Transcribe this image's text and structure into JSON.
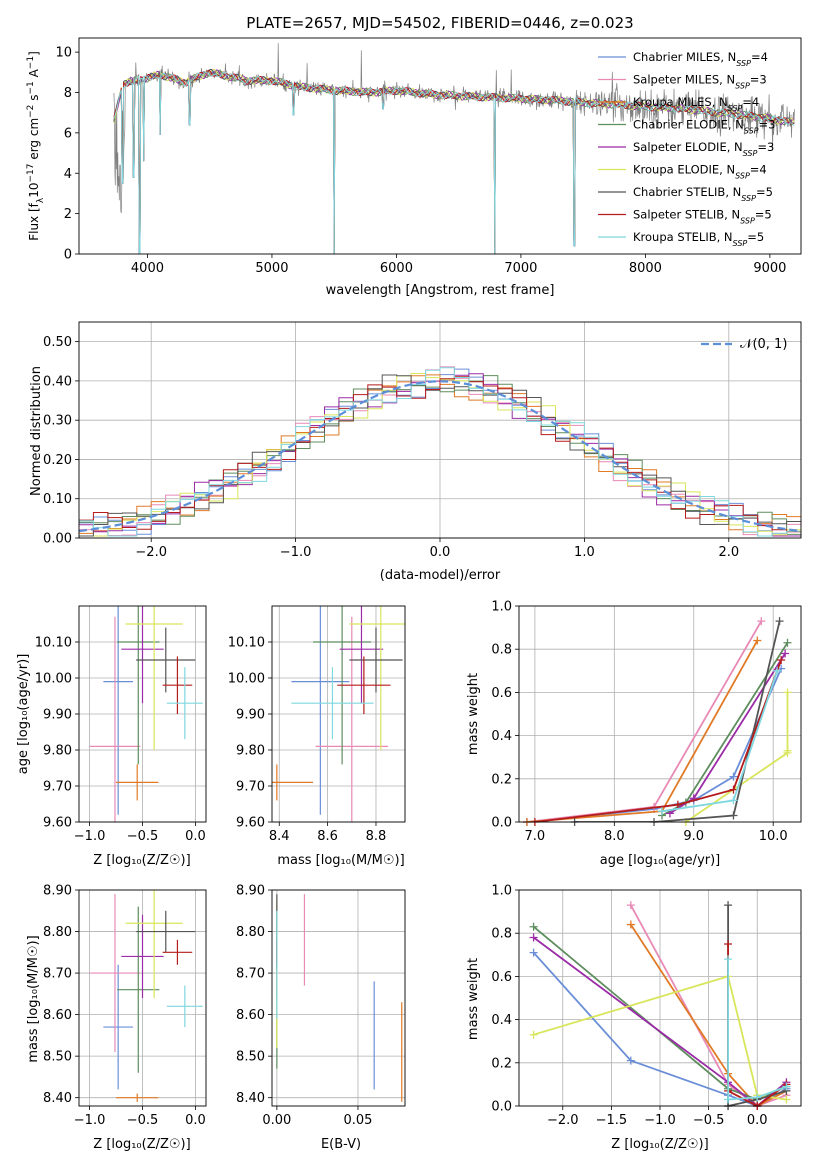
{
  "colors": {
    "Chabrier MILES": "#6a8fd8",
    "Salpeter MILES": "#e889b6",
    "Kroupa MILES": "#e07a26",
    "Chabrier ELODIE": "#5e8d5e",
    "Salpeter ELODIE": "#9b2ba6",
    "Kroupa ELODIE": "#d9e55a",
    "Chabrier STELIB": "#555555",
    "Salpeter STELIB": "#b51c1c",
    "Kroupa STELIB": "#7fd8df",
    "observed": "#808080",
    "gaussian": "#5b8fd8",
    "grid": "#b0b0b0"
  },
  "chart_data": [
    {
      "id": "spectrum",
      "type": "line",
      "title": "PLATE=2657, MJD=54502, FIBERID=0446, z=0.023",
      "xlabel": "wavelength [Angstrom, rest frame]",
      "ylabel_parts": [
        "Flux [f",
        "λ",
        "10",
        "−17",
        " erg cm",
        "−2",
        " s",
        "−1",
        " A",
        "−1",
        "]"
      ],
      "xlim": [
        3450,
        9250
      ],
      "ylim": [
        0,
        10.7
      ],
      "xticks": [
        4000,
        5000,
        6000,
        7000,
        8000,
        9000
      ],
      "yticks": [
        0,
        2,
        4,
        6,
        8,
        10
      ],
      "grid": false,
      "legend_position": "right",
      "continuum": [
        [
          3730,
          6.6
        ],
        [
          3800,
          8.4
        ],
        [
          3900,
          8.6
        ],
        [
          4000,
          8.7
        ],
        [
          4100,
          8.9
        ],
        [
          4300,
          8.5
        ],
        [
          4500,
          9.0
        ],
        [
          4800,
          8.6
        ],
        [
          5000,
          8.6
        ],
        [
          5200,
          8.3
        ],
        [
          5500,
          8.1
        ],
        [
          5800,
          8.0
        ],
        [
          6000,
          8.1
        ],
        [
          6300,
          7.9
        ],
        [
          6600,
          7.8
        ],
        [
          7000,
          7.7
        ],
        [
          7300,
          7.6
        ],
        [
          7500,
          7.5
        ],
        [
          7800,
          7.4
        ],
        [
          8000,
          7.3
        ],
        [
          8300,
          7.2
        ],
        [
          8600,
          7.0
        ],
        [
          8900,
          6.8
        ],
        [
          9200,
          6.5
        ]
      ],
      "absorptions": [
        [
          3800,
          3.5
        ],
        [
          3890,
          3.8
        ],
        [
          3935,
          0.0
        ],
        [
          3970,
          4.6
        ],
        [
          4102,
          5.9
        ],
        [
          4340,
          6.4
        ],
        [
          5175,
          6.9
        ],
        [
          5500,
          0.0
        ],
        [
          5895,
          7.2
        ],
        [
          6790,
          0.0
        ],
        [
          7430,
          0.4
        ]
      ],
      "series": [
        {
          "name": "Chabrier MILES",
          "name_sub": "SSP",
          "n_ssp": "4"
        },
        {
          "name": "Salpeter MILES",
          "name_sub": "SSP",
          "n_ssp": "3"
        },
        {
          "name": "Kroupa MILES",
          "name_sub": "SSP",
          "n_ssp": "4"
        },
        {
          "name": "Chabrier ELODIE",
          "name_sub": "SSP",
          "n_ssp": "3"
        },
        {
          "name": "Salpeter ELODIE",
          "name_sub": "SSP",
          "n_ssp": "3"
        },
        {
          "name": "Kroupa ELODIE",
          "name_sub": "SSP",
          "n_ssp": "4"
        },
        {
          "name": "Chabrier STELIB",
          "name_sub": "SSP",
          "n_ssp": "5"
        },
        {
          "name": "Salpeter STELIB",
          "name_sub": "SSP",
          "n_ssp": "5"
        },
        {
          "name": "Kroupa STELIB",
          "name_sub": "SSP",
          "n_ssp": "5"
        }
      ]
    },
    {
      "id": "residuals",
      "type": "step",
      "xlabel": "(data-model)/error",
      "ylabel": "Normed distribution",
      "xlim": [
        -2.5,
        2.5
      ],
      "ylim": [
        0,
        0.55
      ],
      "xticks": [
        -2,
        -1,
        0,
        1,
        2
      ],
      "yticks": [
        0.0,
        0.1,
        0.2,
        0.3,
        0.4,
        0.5
      ],
      "grid": true,
      "legend": "𝒩(0, 1)",
      "legend_position": "top-right",
      "bin_width": 0.1
    },
    {
      "id": "age_vs_Z",
      "type": "errorbar",
      "xlabel": "Z [log₁₀(Z/Z☉)]",
      "ylabel": "age  [log₁₀(age/yr)]",
      "xlim": [
        -1.1,
        0.1
      ],
      "ylim": [
        9.6,
        10.2
      ],
      "xticks": [
        -1.0,
        -0.5,
        0.0
      ],
      "yticks": [
        9.6,
        9.7,
        9.8,
        9.9,
        10.0,
        10.1
      ],
      "grid": true,
      "points": [
        {
          "series": "Chabrier MILES",
          "x": -0.73,
          "xerr": 0.14,
          "y": 9.99,
          "yerr": 0.37
        },
        {
          "series": "Salpeter MILES",
          "x": -0.76,
          "xerr": 0.24,
          "y": 9.81,
          "yerr": 0.36
        },
        {
          "series": "Kroupa MILES",
          "x": -0.55,
          "xerr": 0.2,
          "y": 9.71,
          "yerr": 0.05
        },
        {
          "series": "Chabrier ELODIE",
          "x": -0.54,
          "xerr": 0.2,
          "y": 10.1,
          "yerr": 0.34
        },
        {
          "series": "Salpeter ELODIE",
          "x": -0.5,
          "xerr": 0.2,
          "y": 10.08,
          "yerr": 0.15
        },
        {
          "series": "Kroupa ELODIE",
          "x": -0.39,
          "xerr": 0.27,
          "y": 10.15,
          "yerr": 0.35
        },
        {
          "series": "Chabrier STELIB",
          "x": -0.28,
          "xerr": 0.28,
          "y": 10.05,
          "yerr": 0.09
        },
        {
          "series": "Salpeter STELIB",
          "x": -0.17,
          "xerr": 0.14,
          "y": 9.98,
          "yerr": 0.08
        },
        {
          "series": "Kroupa STELIB",
          "x": -0.1,
          "xerr": 0.17,
          "y": 9.93,
          "yerr": 0.1
        }
      ]
    },
    {
      "id": "age_vs_mass",
      "type": "errorbar",
      "xlabel": "mass [log₁₀(M/M☉)]",
      "xlim": [
        8.37,
        8.92
      ],
      "ylim": [
        9.6,
        10.2
      ],
      "xticks": [
        8.4,
        8.6,
        8.8
      ],
      "yticks": [
        9.6,
        9.7,
        9.8,
        9.9,
        10.0,
        10.1
      ],
      "grid": true,
      "points": [
        {
          "series": "Chabrier MILES",
          "x": 8.57,
          "xerr": 0.12,
          "y": 9.99,
          "yerr": 0.37
        },
        {
          "series": "Salpeter MILES",
          "x": 8.7,
          "xerr": 0.15,
          "y": 9.81,
          "yerr": 0.36
        },
        {
          "series": "Kroupa MILES",
          "x": 8.39,
          "xerr": 0.15,
          "y": 9.71,
          "yerr": 0.05
        },
        {
          "series": "Chabrier ELODIE",
          "x": 8.66,
          "xerr": 0.12,
          "y": 10.1,
          "yerr": 0.34
        },
        {
          "series": "Salpeter ELODIE",
          "x": 8.74,
          "xerr": 0.09,
          "y": 10.08,
          "yerr": 0.15
        },
        {
          "series": "Kroupa ELODIE",
          "x": 8.82,
          "xerr": 0.13,
          "y": 10.15,
          "yerr": 0.35
        },
        {
          "series": "Chabrier STELIB",
          "x": 8.8,
          "xerr": 0.11,
          "y": 10.05,
          "yerr": 0.09
        },
        {
          "series": "Salpeter STELIB",
          "x": 8.75,
          "xerr": 0.11,
          "y": 9.98,
          "yerr": 0.08
        },
        {
          "series": "Kroupa STELIB",
          "x": 8.62,
          "xerr": 0.17,
          "y": 9.93,
          "yerr": 0.1
        }
      ]
    },
    {
      "id": "mass_weight_vs_age",
      "type": "line",
      "xlabel": "age  [log₁₀(age/yr)]",
      "ylabel": "mass weight",
      "xlim": [
        6.8,
        10.35
      ],
      "ylim": [
        0,
        1.0
      ],
      "xticks": [
        7,
        8,
        9,
        10
      ],
      "yticks": [
        0.0,
        0.2,
        0.4,
        0.6,
        0.8,
        1.0
      ],
      "grid": true,
      "series": [
        {
          "name": "Chabrier MILES",
          "x": [
            6.9,
            8.5,
            9.0,
            9.5,
            10.1
          ],
          "y": [
            0.0,
            0.06,
            0.1,
            0.21,
            0.71
          ]
        },
        {
          "name": "Salpeter MILES",
          "x": [
            6.9,
            8.5,
            9.85
          ],
          "y": [
            0.0,
            0.07,
            0.93
          ]
        },
        {
          "name": "Kroupa MILES",
          "x": [
            6.9,
            8.6,
            9.8
          ],
          "y": [
            0.0,
            0.05,
            0.84
          ]
        },
        {
          "name": "Chabrier ELODIE",
          "x": [
            8.6,
            8.9,
            10.18
          ],
          "y": [
            0.03,
            0.09,
            0.83
          ]
        },
        {
          "name": "Salpeter ELODIE",
          "x": [
            8.7,
            9.0,
            10.15
          ],
          "y": [
            0.04,
            0.11,
            0.78
          ]
        },
        {
          "name": "Kroupa ELODIE",
          "x": [
            8.9,
            10.18,
            10.18,
            10.18
          ],
          "y": [
            0.0,
            0.32,
            0.6,
            0.33
          ]
        },
        {
          "name": "Chabrier STELIB",
          "x": [
            7.5,
            8.5,
            9.5,
            10.08
          ],
          "y": [
            0.0,
            0.0,
            0.03,
            0.93
          ]
        },
        {
          "name": "Salpeter STELIB",
          "x": [
            7.0,
            8.8,
            9.5,
            10.1
          ],
          "y": [
            0.0,
            0.08,
            0.15,
            0.75
          ]
        },
        {
          "name": "Kroupa STELIB",
          "x": [
            8.6,
            9.5,
            10.05
          ],
          "y": [
            0.05,
            0.1,
            0.7
          ]
        }
      ]
    },
    {
      "id": "mass_vs_Z",
      "type": "errorbar",
      "xlabel": "Z [log₁₀(Z/Z☉)]",
      "ylabel": "mass [log₁₀(M/M☉)]",
      "xlim": [
        -1.1,
        0.1
      ],
      "ylim": [
        8.38,
        8.9
      ],
      "xticks": [
        -1.0,
        -0.5,
        0.0
      ],
      "yticks": [
        8.4,
        8.5,
        8.6,
        8.7,
        8.8,
        8.9
      ],
      "grid": true,
      "points": [
        {
          "series": "Chabrier MILES",
          "x": -0.73,
          "xerr": 0.14,
          "y": 8.57,
          "yerr": 0.15
        },
        {
          "series": "Salpeter MILES",
          "x": -0.76,
          "xerr": 0.24,
          "y": 8.7,
          "yerr": 0.19
        },
        {
          "series": "Kroupa MILES",
          "x": -0.55,
          "xerr": 0.2,
          "y": 8.4,
          "yerr": 0.01
        },
        {
          "series": "Chabrier ELODIE",
          "x": -0.54,
          "xerr": 0.2,
          "y": 8.66,
          "yerr": 0.2
        },
        {
          "series": "Salpeter ELODIE",
          "x": -0.5,
          "xerr": 0.2,
          "y": 8.74,
          "yerr": 0.1
        },
        {
          "series": "Kroupa ELODIE",
          "x": -0.39,
          "xerr": 0.27,
          "y": 8.82,
          "yerr": 0.18
        },
        {
          "series": "Chabrier STELIB",
          "x": -0.28,
          "xerr": 0.28,
          "y": 8.8,
          "yerr": 0.05
        },
        {
          "series": "Salpeter STELIB",
          "x": -0.17,
          "xerr": 0.14,
          "y": 8.75,
          "yerr": 0.03
        },
        {
          "series": "Kroupa STELIB",
          "x": -0.1,
          "xerr": 0.17,
          "y": 8.62,
          "yerr": 0.05
        }
      ]
    },
    {
      "id": "mass_vs_ebv",
      "type": "errorbar",
      "xlabel": "E(B-V)",
      "xlim": [
        -0.003,
        0.079
      ],
      "ylim": [
        8.38,
        8.9
      ],
      "xticks": [
        0.0,
        0.05
      ],
      "yticks": [
        8.4,
        8.5,
        8.6,
        8.7,
        8.8,
        8.9
      ],
      "grid": true,
      "points": [
        {
          "series": "Chabrier MILES",
          "x": 0.06,
          "y": 8.55,
          "yerr": 0.13
        },
        {
          "series": "Salpeter MILES",
          "x": 0.017,
          "y": 8.78,
          "yerr": 0.11
        },
        {
          "series": "Kroupa MILES",
          "x": 0.077,
          "y": 8.51,
          "yerr": 0.12
        },
        {
          "series": "Chabrier ELODIE",
          "x": 0.0,
          "y": 8.67,
          "yerr": 0.2
        },
        {
          "series": "Salpeter ELODIE",
          "x": 0.0,
          "y": 8.74,
          "yerr": 0.1
        },
        {
          "series": "Kroupa ELODIE",
          "x": 0.0,
          "y": 8.7,
          "yerr": 0.18
        },
        {
          "series": "Chabrier STELIB",
          "x": 0.0,
          "y": 8.8,
          "yerr": 0.09
        },
        {
          "series": "Salpeter STELIB",
          "x": 0.0,
          "y": 8.75,
          "yerr": 0.03
        },
        {
          "series": "Kroupa STELIB",
          "x": 0.0,
          "y": 8.72,
          "yerr": 0.13
        }
      ]
    },
    {
      "id": "mass_weight_vs_Z",
      "type": "line",
      "xlabel": "Z [log₁₀(Z/Z☉)]",
      "ylabel": "mass weight",
      "xlim": [
        -2.45,
        0.45
      ],
      "ylim": [
        0,
        1.0
      ],
      "xticks": [
        -2.0,
        -1.5,
        -1.0,
        -0.5,
        0.0
      ],
      "yticks": [
        0.0,
        0.2,
        0.4,
        0.6,
        0.8,
        1.0
      ],
      "grid": true,
      "series": [
        {
          "name": "Chabrier MILES",
          "x": [
            -2.3,
            -1.3,
            -0.3,
            0.0,
            0.3
          ],
          "y": [
            0.71,
            0.21,
            0.05,
            0.0,
            0.08
          ]
        },
        {
          "name": "Salpeter MILES",
          "x": [
            -1.3,
            -0.3,
            0.0,
            0.3
          ],
          "y": [
            0.93,
            0.1,
            0.0,
            0.05
          ]
        },
        {
          "name": "Kroupa MILES",
          "x": [
            -1.3,
            -0.3,
            0.0,
            0.3
          ],
          "y": [
            0.84,
            0.15,
            0.0,
            0.07
          ]
        },
        {
          "name": "Chabrier ELODIE",
          "x": [
            -2.3,
            -0.3,
            0.0,
            0.3
          ],
          "y": [
            0.83,
            0.08,
            0.03,
            0.09
          ]
        },
        {
          "name": "Salpeter ELODIE",
          "x": [
            -2.3,
            -0.3,
            0.0,
            0.3
          ],
          "y": [
            0.78,
            0.11,
            0.0,
            0.11
          ]
        },
        {
          "name": "Kroupa ELODIE",
          "x": [
            -2.3,
            -0.3,
            0.0,
            0.3
          ],
          "y": [
            0.33,
            0.6,
            0.05,
            0.03
          ]
        },
        {
          "name": "Chabrier STELIB",
          "x": [
            -0.3,
            -0.3,
            -0.3,
            0.0,
            0.3
          ],
          "y": [
            0.93,
            0.0,
            0.0,
            0.03,
            0.07
          ]
        },
        {
          "name": "Salpeter STELIB",
          "x": [
            -0.3,
            -0.3,
            0.0,
            0.3
          ],
          "y": [
            0.75,
            0.07,
            0.0,
            0.1
          ]
        },
        {
          "name": "Kroupa STELIB",
          "x": [
            -0.3,
            -0.3,
            0.0,
            0.3
          ],
          "y": [
            0.68,
            0.03,
            0.04,
            0.09
          ]
        }
      ]
    }
  ]
}
